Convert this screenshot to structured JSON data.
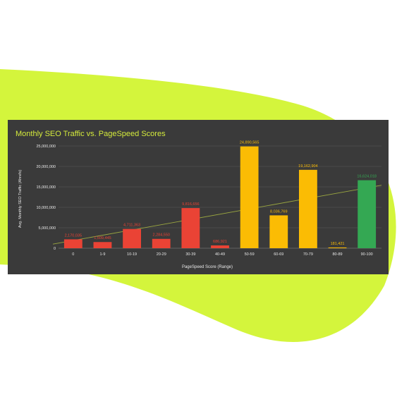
{
  "chart_data": {
    "type": "bar",
    "title": "Monthly SEO Traffic vs. PageSpeed Scores",
    "xlabel": "PageSpeed Score (Range)",
    "ylabel": "Avg. Monthly SEO Traffic (Ahrefs)",
    "ylim": [
      0,
      25000000
    ],
    "yticks": [
      "0",
      "5,000,000",
      "10,000,000",
      "15,000,000",
      "20,000,000",
      "25,000,000"
    ],
    "grid": true,
    "categories": [
      "0",
      "1-9",
      "10-19",
      "20-29",
      "30-39",
      "40-49",
      "50-59",
      "60-69",
      "70-79",
      "80-89",
      "90-100"
    ],
    "values": [
      2170035,
      1509445,
      4711363,
      2284550,
      9816656,
      686921,
      24890565,
      8036769,
      19162904,
      181421,
      16624018
    ],
    "labels": [
      "2,170,035",
      "1,509,445",
      "4,711,363",
      "2,284,550",
      "9,816,656",
      "686,921",
      "24,890,565",
      "8,036,769",
      "19,162,904",
      "181,421",
      "16,624,018"
    ],
    "colors": [
      "#ea4335",
      "#ea4335",
      "#ea4335",
      "#ea4335",
      "#ea4335",
      "#ea4335",
      "#fbbc04",
      "#fbbc04",
      "#fbbc04",
      "#fbbc04",
      "#34a853"
    ],
    "trendline": {
      "start": 1000000,
      "end": 15400000,
      "color": "#9aa640"
    }
  },
  "colors": {
    "background_shape": "#d4f53c",
    "panel": "#3a3a3a",
    "title": "#d4ea3c",
    "text": "#e8e8e8",
    "grid": "#5a5a5a"
  }
}
